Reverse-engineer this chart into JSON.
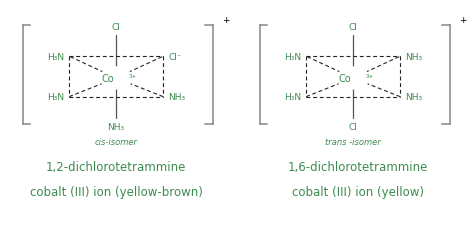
{
  "bg_color": "#ffffff",
  "green": "#3d8c4f",
  "line_color": "#555555",
  "dash_color": "#222222",
  "title1": "1,2-dichlorotetrammine",
  "title1b": "cobalt (III) ion (yellow-brown)",
  "title2": "1,6-dichlorotetrammine",
  "title2b": "cobalt (III) ion (yellow)",
  "sub1": "cis-isomer",
  "sub2": "trans -isomer",
  "title_fontsize": 8.5,
  "sub_fontsize": 6.0,
  "label_fontsize": 6.5,
  "co_fontsize": 7.0,
  "bracket_color": "#888888"
}
